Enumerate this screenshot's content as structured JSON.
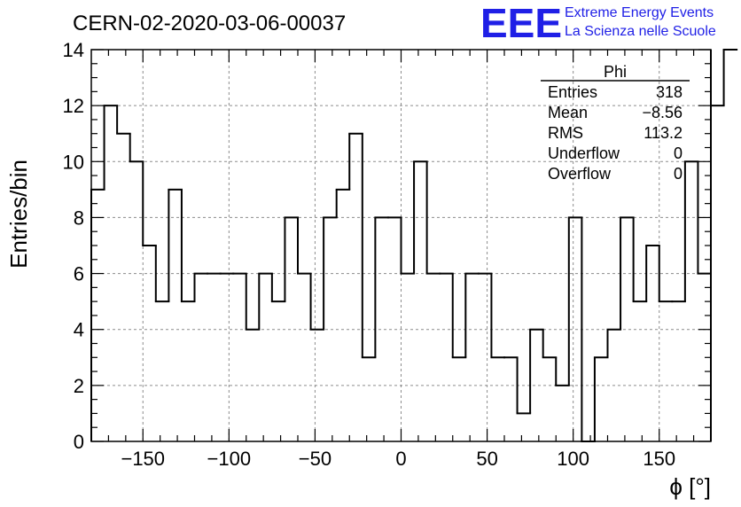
{
  "header": {
    "run_title": "CERN-02-2020-03-06-00037",
    "logo": {
      "mark": "EEE",
      "line1": "Extreme Energy Events",
      "line2": "La Scienza nelle Scuole",
      "color": "#1f1fe6"
    }
  },
  "stats_box": {
    "name": "Phi",
    "rows": [
      {
        "label": "Entries",
        "value": "318"
      },
      {
        "label": "Mean",
        "value": "−8.56"
      },
      {
        "label": "RMS",
        "value": "113.2"
      },
      {
        "label": "Underflow",
        "value": "0"
      },
      {
        "label": "Overflow",
        "value": "0"
      }
    ]
  },
  "chart_data": {
    "type": "bar",
    "style": "step-histogram",
    "xlabel": "ϕ [°]",
    "ylabel": "Entries/bin",
    "xlim": [
      -180,
      180
    ],
    "ylim": [
      0,
      14
    ],
    "bin_width": 7.5,
    "grid": true,
    "line_color": "#000000",
    "x_ticks": [
      -150,
      -100,
      -50,
      0,
      50,
      100,
      150
    ],
    "x_tick_labels": [
      "−150",
      "−100",
      "−50",
      "0",
      "50",
      "100",
      "150"
    ],
    "y_ticks": [
      0,
      2,
      4,
      6,
      8,
      10,
      12,
      14
    ],
    "y_tick_labels": [
      "0",
      "2",
      "4",
      "6",
      "8",
      "10",
      "12",
      "14"
    ],
    "values": [
      9,
      12,
      11,
      10,
      7,
      5,
      9,
      5,
      6,
      6,
      6,
      6,
      4,
      6,
      5,
      8,
      6,
      4,
      8,
      9,
      11,
      3,
      8,
      8,
      6,
      10,
      6,
      6,
      3,
      6,
      6,
      3,
      3,
      1,
      4,
      3,
      2,
      8,
      0,
      3,
      4,
      8,
      5,
      7,
      5,
      5,
      10,
      6,
      12,
      14
    ]
  }
}
